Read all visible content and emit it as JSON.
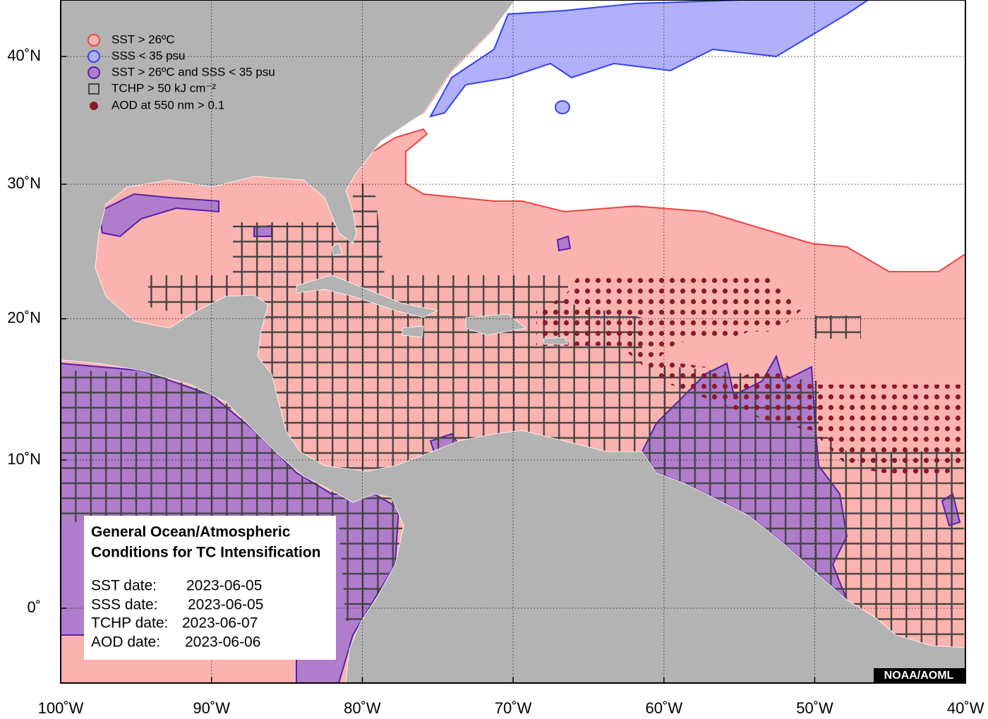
{
  "map": {
    "legend": [
      "SST > 26ºC",
      "SSS < 35 psu",
      "SST > 26ºC and SSS < 35 psu",
      "TCHP > 50 kJ cm⁻²",
      "AOD at 550 nm > 0.1"
    ],
    "info_box": {
      "title": [
        "General Ocean/Atmospheric",
        "Conditions for TC Intensification"
      ],
      "rows": [
        {
          "label": "SST date:",
          "date": "2023-06-05"
        },
        {
          "label": "SSS date:",
          "date": "2023-06-05"
        },
        {
          "label": "TCHP date:",
          "date": "2023-06-07"
        },
        {
          "label": "AOD date:",
          "date": "2023-06-06"
        }
      ]
    },
    "lon_ticks": [
      {
        "value": -100,
        "label": "100˚W"
      },
      {
        "value": -90,
        "label": "90˚W"
      },
      {
        "value": -80,
        "label": "80˚W"
      },
      {
        "value": -70,
        "label": "70˚W"
      },
      {
        "value": -60,
        "label": "60˚W"
      },
      {
        "value": -50,
        "label": "50˚W"
      },
      {
        "value": -40,
        "label": "40˚W"
      }
    ],
    "lat_ticks": [
      {
        "value": 0,
        "label": "0˚"
      },
      {
        "value": 10,
        "label": "10˚N"
      },
      {
        "value": 20,
        "label": "20˚N"
      },
      {
        "value": 30,
        "label": "30˚N"
      },
      {
        "value": 40,
        "label": "40˚N"
      }
    ],
    "credit": "NOAA/AOML"
  }
}
